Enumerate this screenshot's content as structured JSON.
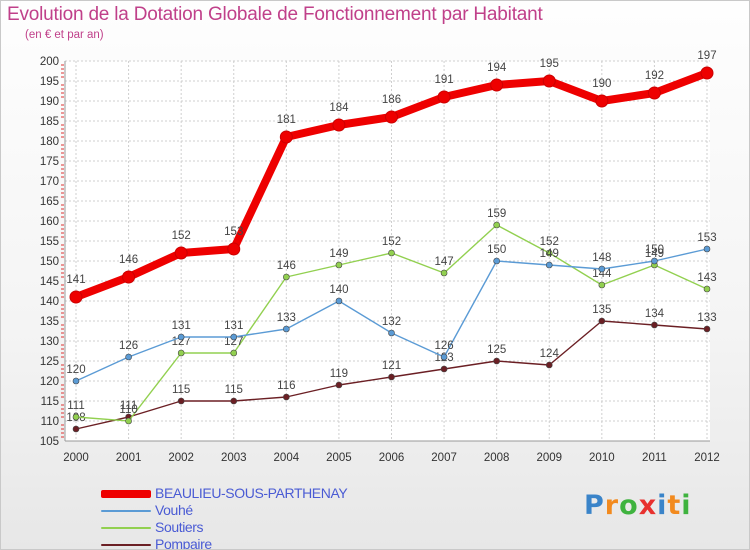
{
  "title": "Evolution de la Dotation Globale de Fonctionnement par Habitant",
  "subtitle": "(en € et par an)",
  "logo": {
    "text": "Proxiti",
    "letters": [
      "P",
      "r",
      "o",
      "x",
      "i",
      "t",
      "i"
    ],
    "colors": [
      "#3a84c9",
      "#f28a1e",
      "#3fb33f",
      "#e8312f",
      "#3a84c9",
      "#f28a1e",
      "#3fb33f"
    ]
  },
  "chart_data": {
    "type": "line",
    "x": [
      "2000",
      "2001",
      "2002",
      "2003",
      "2004",
      "2005",
      "2006",
      "2007",
      "2008",
      "2009",
      "2010",
      "2011",
      "2012"
    ],
    "ylim": [
      105,
      200
    ],
    "yticks": [
      105,
      110,
      115,
      120,
      125,
      130,
      135,
      140,
      145,
      150,
      155,
      160,
      165,
      170,
      175,
      180,
      185,
      190,
      195,
      200
    ],
    "grid": true,
    "legend_position": "bottom-left",
    "series": [
      {
        "name": "BEAULIEU-SOUS-PARTHENAY",
        "color": "#ee0000",
        "values": [
          141,
          146,
          152,
          153,
          181,
          184,
          186,
          191,
          194,
          195,
          190,
          192,
          197
        ]
      },
      {
        "name": "Vouhé",
        "color": "#5b9bd5",
        "values": [
          120,
          126,
          131,
          131,
          133,
          140,
          132,
          126,
          150,
          149,
          148,
          150,
          153
        ]
      },
      {
        "name": "Soutiers",
        "color": "#92d050",
        "values": [
          111,
          110,
          127,
          127,
          146,
          149,
          152,
          147,
          159,
          152,
          144,
          149,
          143
        ]
      },
      {
        "name": "Pompaire",
        "color": "#6b1f24",
        "values": [
          108,
          111,
          115,
          115,
          116,
          119,
          121,
          123,
          125,
          124,
          135,
          134,
          133
        ]
      }
    ]
  }
}
